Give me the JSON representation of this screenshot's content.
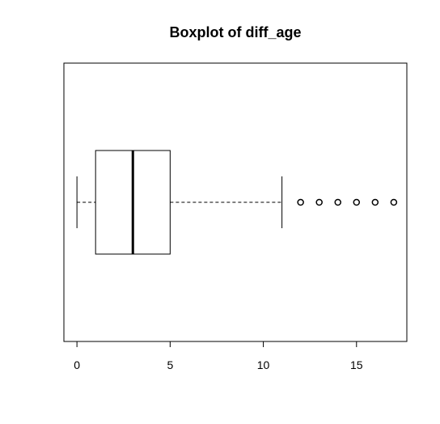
{
  "chart_data": {
    "type": "boxplot",
    "orientation": "horizontal",
    "title": "Boxplot of diff_age",
    "xlabel": "",
    "ylabel": "",
    "xlim": [
      -0.7,
      17.7
    ],
    "xticks": [
      0,
      5,
      10,
      15
    ],
    "tick_labels": [
      "0",
      "5",
      "10",
      "15"
    ],
    "box": {
      "whisker_low": 0,
      "q1": 1,
      "median": 3,
      "q3": 5,
      "whisker_high": 11
    },
    "outliers": [
      12,
      13,
      14,
      15,
      16,
      17
    ],
    "grid": false,
    "legend": "none"
  }
}
